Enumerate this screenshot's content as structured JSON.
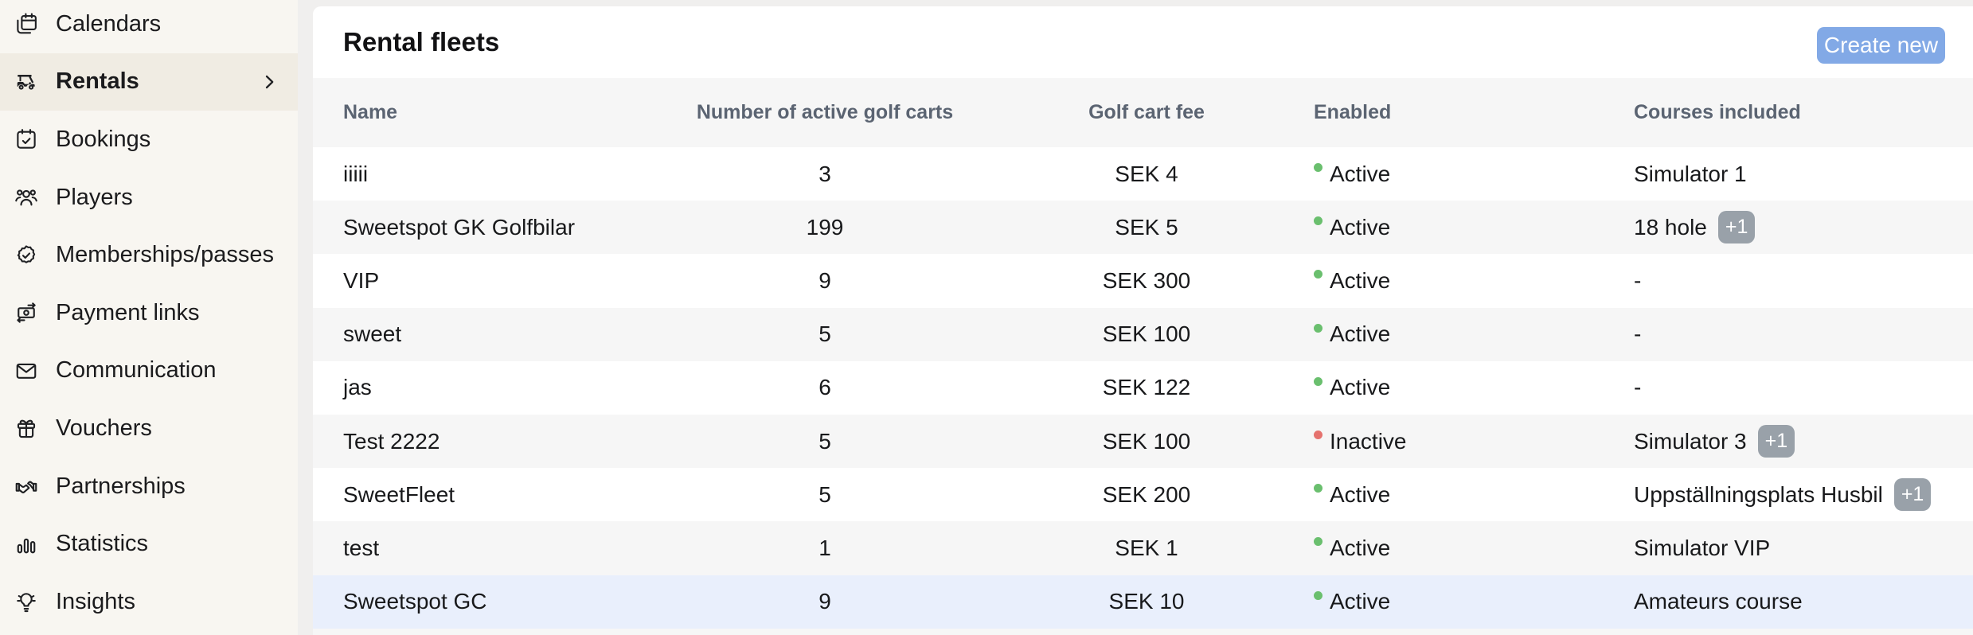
{
  "colors": {
    "accent_blue": "#82a9e6",
    "row_highlight": "#e9effc",
    "row_stripe": "#f6f6f6",
    "status_active": "#6abf6e",
    "status_inactive": "#e5726e",
    "badge_bg": "#99a1a9",
    "sidebar_bg": "#f8f6f1",
    "sidebar_active_bg": "#f0ece3"
  },
  "sidebar": {
    "items": [
      {
        "label": "Calendars",
        "icon": "calendars-icon",
        "active": false,
        "chevron": false
      },
      {
        "label": "Rentals",
        "icon": "golf-cart-icon",
        "active": true,
        "chevron": true
      },
      {
        "label": "Bookings",
        "icon": "calendar-check-icon",
        "active": false,
        "chevron": false
      },
      {
        "label": "Players",
        "icon": "players-icon",
        "active": false,
        "chevron": false
      },
      {
        "label": "Memberships/passes",
        "icon": "badge-check-icon",
        "active": false,
        "chevron": false
      },
      {
        "label": "Payment links",
        "icon": "banknote-icon",
        "active": false,
        "chevron": false
      },
      {
        "label": "Communication",
        "icon": "envelope-icon",
        "active": false,
        "chevron": false
      },
      {
        "label": "Vouchers",
        "icon": "gift-icon",
        "active": false,
        "chevron": false
      },
      {
        "label": "Partnerships",
        "icon": "handshake-icon",
        "active": false,
        "chevron": false
      },
      {
        "label": "Statistics",
        "icon": "bar-chart-icon",
        "active": false,
        "chevron": false
      },
      {
        "label": "Insights",
        "icon": "lightbulb-icon",
        "active": false,
        "chevron": false
      }
    ]
  },
  "header": {
    "title": "Rental fleets",
    "create_button_label": "Create new"
  },
  "table": {
    "columns": [
      "Name",
      "Number of active golf carts",
      "Golf cart fee",
      "Enabled",
      "Courses included"
    ],
    "rows": [
      {
        "name": "iiiii",
        "carts": "3",
        "fee": "SEK 4",
        "status": "Active",
        "courses": "Simulator 1",
        "badge": "",
        "highlighted": false
      },
      {
        "name": "Sweetspot GK Golfbilar",
        "carts": "199",
        "fee": "SEK 5",
        "status": "Active",
        "courses": "18 hole",
        "badge": "+1",
        "highlighted": false
      },
      {
        "name": "VIP",
        "carts": "9",
        "fee": "SEK 300",
        "status": "Active",
        "courses": "-",
        "badge": "",
        "highlighted": false
      },
      {
        "name": "sweet",
        "carts": "5",
        "fee": "SEK 100",
        "status": "Active",
        "courses": "-",
        "badge": "",
        "highlighted": false
      },
      {
        "name": "jas",
        "carts": "6",
        "fee": "SEK 122",
        "status": "Active",
        "courses": "-",
        "badge": "",
        "highlighted": false
      },
      {
        "name": "Test 2222",
        "carts": "5",
        "fee": "SEK 100",
        "status": "Inactive",
        "courses": "Simulator 3",
        "badge": "+1",
        "highlighted": false
      },
      {
        "name": "SweetFleet",
        "carts": "5",
        "fee": "SEK 200",
        "status": "Active",
        "courses": "Uppställningsplats Husbil",
        "badge": "+1",
        "highlighted": false
      },
      {
        "name": "test",
        "carts": "1",
        "fee": "SEK 1",
        "status": "Active",
        "courses": "Simulator VIP",
        "badge": "",
        "highlighted": false
      },
      {
        "name": "Sweetspot GC",
        "carts": "9",
        "fee": "SEK 10",
        "status": "Active",
        "courses": "Amateurs course",
        "badge": "",
        "highlighted": true
      }
    ]
  }
}
